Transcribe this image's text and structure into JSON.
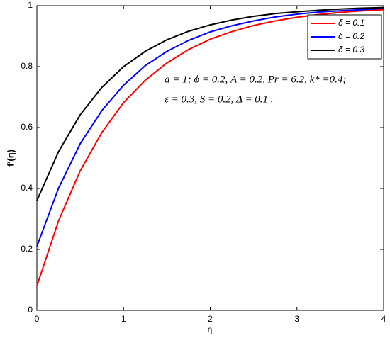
{
  "chart_data": {
    "type": "line",
    "x_label": "η",
    "y_label": "f′(η)",
    "x": [
      0,
      0.25,
      0.5,
      0.75,
      1,
      1.25,
      1.5,
      1.75,
      2,
      2.25,
      2.5,
      2.75,
      3,
      3.25,
      3.5,
      3.75,
      4
    ],
    "series": [
      {
        "name": "δ = 0.1",
        "color": "#ff0000",
        "values": [
          0.08,
          0.294,
          0.458,
          0.584,
          0.682,
          0.755,
          0.812,
          0.856,
          0.89,
          0.915,
          0.935,
          0.95,
          0.962,
          0.971,
          0.978,
          0.983,
          0.987
        ]
      },
      {
        "name": "δ = 0.2",
        "color": "#0000ff",
        "values": [
          0.21,
          0.401,
          0.547,
          0.656,
          0.739,
          0.803,
          0.85,
          0.886,
          0.914,
          0.934,
          0.95,
          0.963,
          0.972,
          0.979,
          0.983,
          0.987,
          0.991
        ]
      },
      {
        "name": "δ = 0.3",
        "color": "#000000",
        "values": [
          0.36,
          0.521,
          0.642,
          0.732,
          0.8,
          0.85,
          0.888,
          0.916,
          0.937,
          0.953,
          0.965,
          0.974,
          0.98,
          0.985,
          0.989,
          0.992,
          0.994
        ]
      }
    ],
    "annotations": [
      "a = 1; ϕ = 0.2, A = 0.2, Pr = 6.2, k* =0.4;",
      "ε = 0.3, S = 0.2, Δ = 0.1 ."
    ],
    "xlim": [
      0,
      4
    ],
    "xticks": [
      0,
      1,
      2,
      3,
      4
    ],
    "ylim": [
      0,
      1
    ],
    "yticks": [
      0,
      0.2,
      0.4,
      0.6,
      0.8,
      1
    ],
    "grid": false,
    "legend": "upper right"
  }
}
